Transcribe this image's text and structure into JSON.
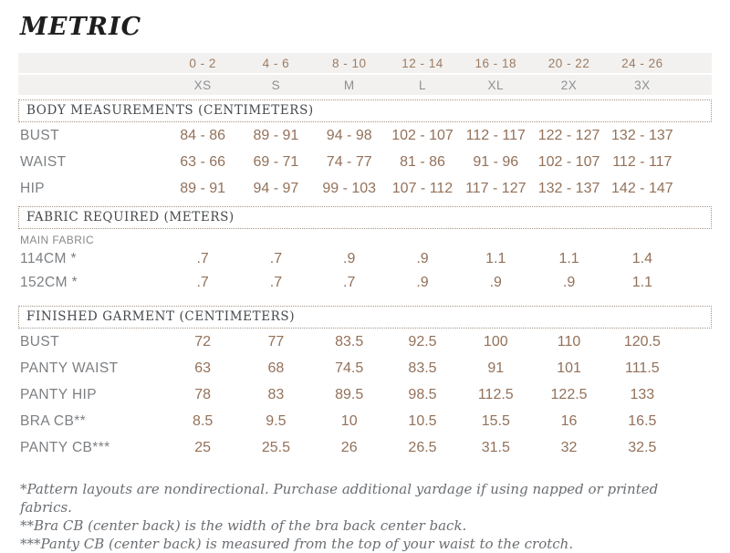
{
  "title": "METRIC",
  "colors": {
    "value_brown": "#93715a",
    "header_size_brown": "#9d7b63",
    "label_gray": "#7c7f82",
    "band_bg": "#f2f1ef",
    "section_heading_gray": "#46494c",
    "dotted_border": "#a49484"
  },
  "size_header": {
    "numeric": [
      "0 - 2",
      "4 - 6",
      "8 - 10",
      "12 - 14",
      "16 - 18",
      "20 - 22",
      "24 - 26"
    ],
    "alpha": [
      "XS",
      "S",
      "M",
      "L",
      "XL",
      "2X",
      "3X"
    ]
  },
  "sections": [
    {
      "heading": "BODY MEASUREMENTS (CENTIMETERS)",
      "rows": [
        {
          "label": "BUST",
          "values": [
            "84 - 86",
            "89 - 91",
            "94 - 98",
            "102 - 107",
            "112 - 117",
            "122 - 127",
            "132 - 137"
          ]
        },
        {
          "label": "WAIST",
          "values": [
            "63 - 66",
            "69 - 71",
            "74 - 77",
            "81 - 86",
            "91 - 96",
            "102 - 107",
            "112 - 117"
          ]
        },
        {
          "label": "HIP",
          "values": [
            "89 - 91",
            "94 - 97",
            "99 - 103",
            "107 - 112",
            "117 - 127",
            "132 - 137",
            "142 - 147"
          ]
        }
      ]
    },
    {
      "heading": "FABRIC REQUIRED (METERS)",
      "subheading": "MAIN FABRIC",
      "rows": [
        {
          "label": "114CM *",
          "values": [
            ".7",
            ".7",
            ".9",
            ".9",
            "1.1",
            "1.1",
            "1.4"
          ]
        },
        {
          "label": "152CM *",
          "values": [
            ".7",
            ".7",
            ".7",
            ".9",
            ".9",
            ".9",
            "1.1"
          ]
        }
      ]
    },
    {
      "heading": "FINISHED GARMENT (CENTIMETERS)",
      "rows": [
        {
          "label": "BUST",
          "values": [
            "72",
            "77",
            "83.5",
            "92.5",
            "100",
            "110",
            "120.5"
          ]
        },
        {
          "label": "PANTY WAIST",
          "values": [
            "63",
            "68",
            "74.5",
            "83.5",
            "91",
            "101",
            "111.5"
          ]
        },
        {
          "label": "PANTY HIP",
          "values": [
            "78",
            "83",
            "89.5",
            "98.5",
            "112.5",
            "122.5",
            "133"
          ]
        },
        {
          "label": "BRA CB**",
          "values": [
            "8.5",
            "9.5",
            "10",
            "10.5",
            "15.5",
            "16",
            "16.5"
          ]
        },
        {
          "label": "PANTY CB***",
          "values": [
            "25",
            "25.5",
            "26",
            "26.5",
            "31.5",
            "32",
            "32.5"
          ]
        }
      ]
    }
  ],
  "footnotes": [
    "*Pattern layouts are nondirectional. Purchase additional yardage if using napped or printed fabrics.",
    "**Bra CB (center back) is the width of the bra back center back.",
    "***Panty CB (center back) is measured from the top of your waist to the crotch."
  ]
}
